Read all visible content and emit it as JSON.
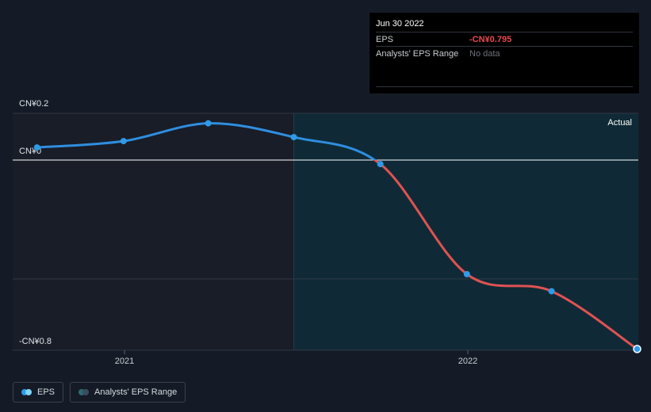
{
  "tooltip": {
    "date": "Jun 30 2022",
    "rows": [
      {
        "label": "EPS",
        "value": "-CN¥0.795"
      },
      {
        "label": "Analysts' EPS Range",
        "value": "No data"
      }
    ]
  },
  "chart_data": {
    "type": "line",
    "y_label_top": "CN¥0.2",
    "y_label_zero": "CN¥0",
    "y_label_bottom": "-CN¥0.8",
    "ylim": [
      -0.8,
      0.2
    ],
    "x_ticks": [
      "2021",
      "2022"
    ],
    "forecast_region_label": "Actual",
    "series": [
      {
        "name": "EPS",
        "x": [
          "2020-09-30",
          "2020-12-31",
          "2021-03-31",
          "2021-06-30",
          "2021-09-30",
          "2021-12-31",
          "2022-03-31",
          "2022-06-30"
        ],
        "values": [
          0.054,
          0.081,
          0.157,
          0.098,
          -0.017,
          -0.48,
          -0.552,
          -0.795
        ]
      }
    ],
    "colors": {
      "positive": "#2f8ee0",
      "negative": "#e05252",
      "point": "#2f9be8"
    }
  },
  "legend": {
    "items": [
      {
        "label": "EPS"
      },
      {
        "label": "Analysts' EPS Range"
      }
    ]
  }
}
